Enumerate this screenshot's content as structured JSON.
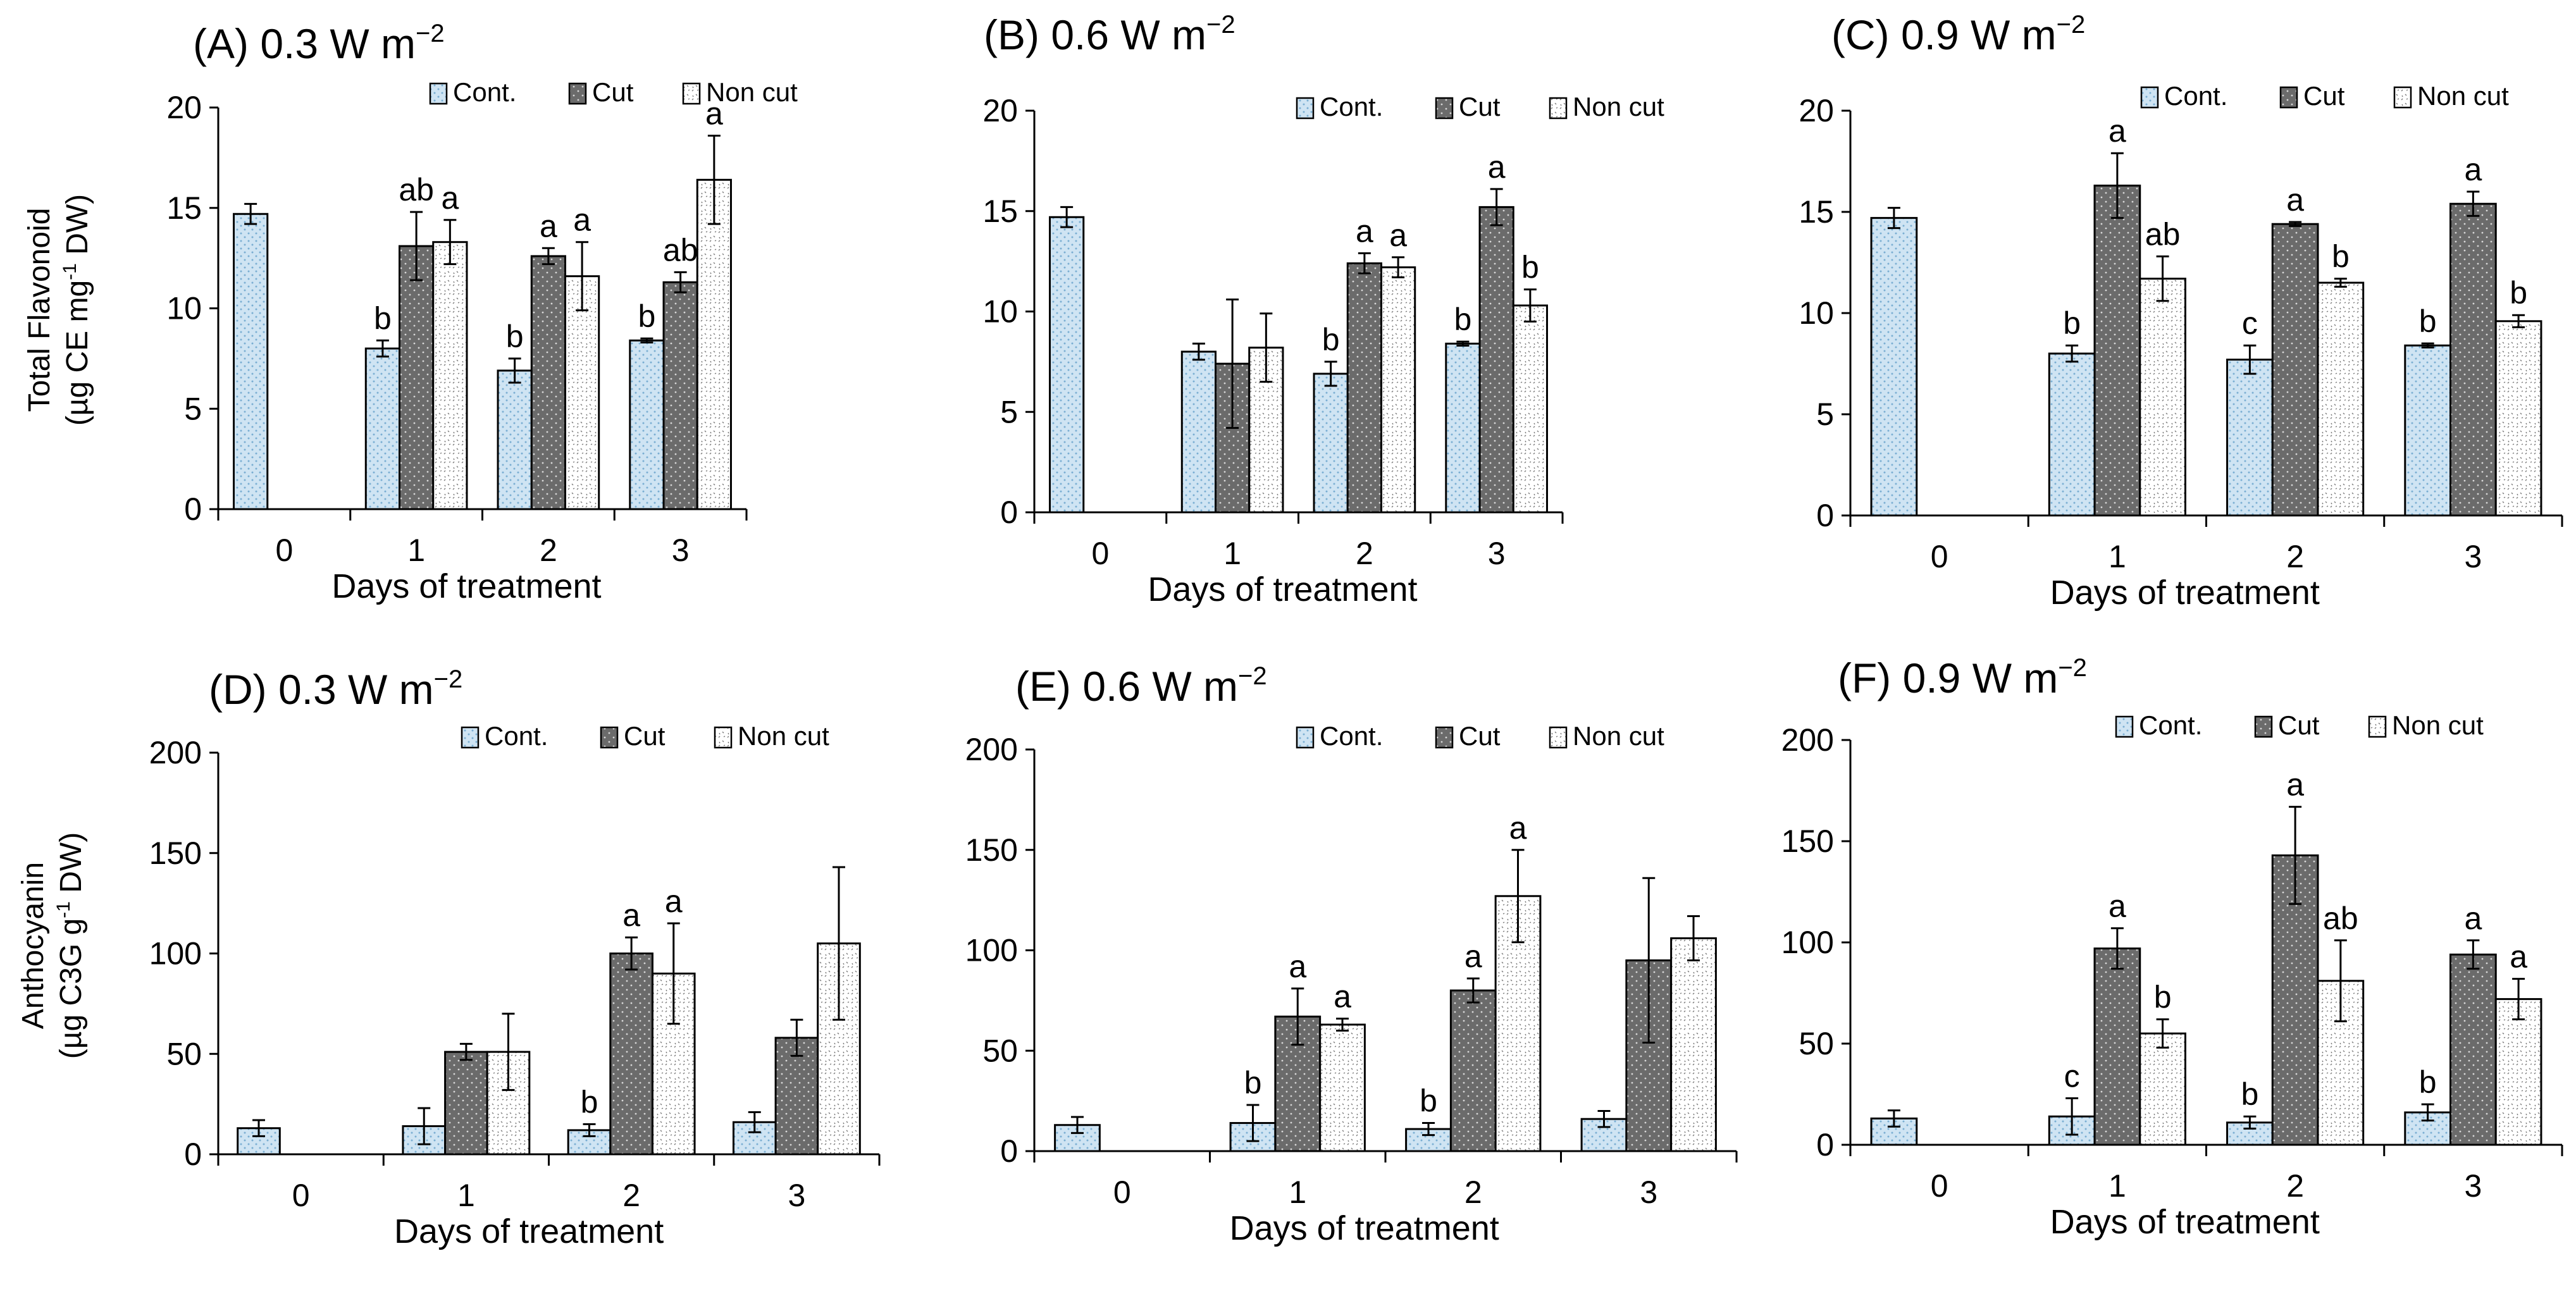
{
  "figure": {
    "row_ylabels": [
      {
        "line1": "Total Flavonoid",
        "line2_pre": "(µg CE mg",
        "line2_sup": "-1",
        "line2_post": " DW)"
      },
      {
        "line1": "Anthocyanin",
        "line2_pre": "(µg C3G g",
        "line2_sup": "-1",
        "line2_post": " DW)"
      }
    ],
    "legend": [
      "Cont.",
      "Cut",
      "Non cut"
    ],
    "colors": {
      "cont": "#cfe4f3",
      "cont_dot": "#7aaed2",
      "cut": "#6b6b6b",
      "cut_dot": "#d8d8d8",
      "noncut": "#ffffff",
      "noncut_mark": "#7a7a7a"
    }
  },
  "chart_data": [
    {
      "type": "bar",
      "panel": "(A)",
      "title": "(A) 0.3 W m",
      "title_sup": "−2",
      "categories": [
        "0",
        "1",
        "2",
        "3"
      ],
      "xlabel": "Days of treatment",
      "ylim": [
        0,
        20
      ],
      "yticks": [
        0,
        5,
        10,
        15,
        20
      ],
      "series": [
        {
          "name": "Cont.",
          "values": [
            14.7,
            8.0,
            6.9,
            8.4
          ],
          "errors": [
            0.5,
            0.4,
            0.6,
            0.1
          ],
          "labels": [
            "",
            "b",
            "b",
            "b"
          ]
        },
        {
          "name": "Cut",
          "values": [
            null,
            13.1,
            12.6,
            11.3
          ],
          "errors": [
            null,
            1.7,
            0.4,
            0.5
          ],
          "labels": [
            "",
            "ab",
            "a",
            "ab"
          ]
        },
        {
          "name": "Non cut",
          "values": [
            null,
            13.3,
            11.6,
            16.4
          ],
          "errors": [
            null,
            1.1,
            1.7,
            2.2
          ],
          "labels": [
            "",
            "a",
            "a",
            "a"
          ]
        }
      ]
    },
    {
      "type": "bar",
      "panel": "(B)",
      "title": "(B) 0.6 W m",
      "title_sup": "−2",
      "categories": [
        "0",
        "1",
        "2",
        "3"
      ],
      "xlabel": "Days of treatment",
      "ylim": [
        0,
        20
      ],
      "yticks": [
        0,
        5,
        10,
        15,
        20
      ],
      "series": [
        {
          "name": "Cont.",
          "values": [
            14.7,
            8.0,
            6.9,
            8.4
          ],
          "errors": [
            0.5,
            0.4,
            0.6,
            0.1
          ],
          "labels": [
            "",
            "",
            "b",
            "b"
          ]
        },
        {
          "name": "Cut",
          "values": [
            null,
            7.4,
            12.4,
            15.2
          ],
          "errors": [
            null,
            3.2,
            0.5,
            0.9
          ],
          "labels": [
            "",
            "",
            "a",
            "a"
          ]
        },
        {
          "name": "Non cut",
          "values": [
            null,
            8.2,
            12.2,
            10.3
          ],
          "errors": [
            null,
            1.7,
            0.5,
            0.8
          ],
          "labels": [
            "",
            "",
            "a",
            "b"
          ]
        }
      ]
    },
    {
      "type": "bar",
      "panel": "(C)",
      "title": "(C) 0.9 W m",
      "title_sup": "−2",
      "categories": [
        "0",
        "1",
        "2",
        "3"
      ],
      "xlabel": "Days of treatment",
      "ylim": [
        0,
        20
      ],
      "yticks": [
        0,
        5,
        10,
        15,
        20
      ],
      "series": [
        {
          "name": "Cont.",
          "values": [
            14.7,
            8.0,
            7.7,
            8.4
          ],
          "errors": [
            0.5,
            0.4,
            0.7,
            0.1
          ],
          "labels": [
            "",
            "b",
            "c",
            "b"
          ]
        },
        {
          "name": "Cut",
          "values": [
            null,
            16.3,
            14.4,
            15.4
          ],
          "errors": [
            null,
            1.6,
            0.1,
            0.6
          ],
          "labels": [
            "",
            "a",
            "a",
            "a"
          ]
        },
        {
          "name": "Non cut",
          "values": [
            null,
            11.7,
            11.5,
            9.6
          ],
          "errors": [
            null,
            1.1,
            0.2,
            0.3
          ],
          "labels": [
            "",
            "ab",
            "b",
            "b"
          ]
        }
      ]
    },
    {
      "type": "bar",
      "panel": "(D)",
      "title": "(D) 0.3 W m",
      "title_sup": "−2",
      "categories": [
        "0",
        "1",
        "2",
        "3"
      ],
      "xlabel": "Days of treatment",
      "ylim": [
        0,
        200
      ],
      "yticks": [
        0,
        50,
        100,
        150,
        200
      ],
      "series": [
        {
          "name": "Cont.",
          "values": [
            13,
            14,
            12,
            16
          ],
          "errors": [
            4,
            9,
            3,
            5
          ],
          "labels": [
            "",
            "",
            "b",
            ""
          ]
        },
        {
          "name": "Cut",
          "values": [
            null,
            51,
            100,
            58
          ],
          "errors": [
            null,
            4,
            8,
            9
          ],
          "labels": [
            "",
            "",
            "a",
            ""
          ]
        },
        {
          "name": "Non cut",
          "values": [
            null,
            51,
            90,
            105
          ],
          "errors": [
            null,
            19,
            25,
            38
          ],
          "labels": [
            "",
            "",
            "a",
            ""
          ]
        }
      ]
    },
    {
      "type": "bar",
      "panel": "(E)",
      "title": "(E) 0.6 W m",
      "title_sup": "−2",
      "categories": [
        "0",
        "1",
        "2",
        "3"
      ],
      "xlabel": "Days of treatment",
      "ylim": [
        0,
        200
      ],
      "yticks": [
        0,
        50,
        100,
        150,
        200
      ],
      "series": [
        {
          "name": "Cont.",
          "values": [
            13,
            14,
            11,
            16
          ],
          "errors": [
            4,
            9,
            3,
            4
          ],
          "labels": [
            "",
            "b",
            "b",
            ""
          ]
        },
        {
          "name": "Cut",
          "values": [
            null,
            67,
            80,
            95
          ],
          "errors": [
            null,
            14,
            6,
            41
          ],
          "labels": [
            "",
            "a",
            "a",
            ""
          ]
        },
        {
          "name": "Non cut",
          "values": [
            null,
            63,
            127,
            106
          ],
          "errors": [
            null,
            3,
            23,
            11
          ],
          "labels": [
            "",
            "a",
            "a",
            ""
          ]
        }
      ]
    },
    {
      "type": "bar",
      "panel": "(F)",
      "title": "(F) 0.9 W m",
      "title_sup": "−2",
      "categories": [
        "0",
        "1",
        "2",
        "3"
      ],
      "xlabel": "Days of treatment",
      "ylim": [
        0,
        200
      ],
      "yticks": [
        0,
        50,
        100,
        150,
        200
      ],
      "series": [
        {
          "name": "Cont.",
          "values": [
            13,
            14,
            11,
            16
          ],
          "errors": [
            4,
            9,
            3,
            4
          ],
          "labels": [
            "",
            "c",
            "b",
            "b"
          ]
        },
        {
          "name": "Cut",
          "values": [
            null,
            97,
            143,
            94
          ],
          "errors": [
            null,
            10,
            24,
            7
          ],
          "labels": [
            "",
            "a",
            "a",
            "a"
          ]
        },
        {
          "name": "Non cut",
          "values": [
            null,
            55,
            81,
            72
          ],
          "errors": [
            null,
            7,
            20,
            10
          ],
          "labels": [
            "",
            "b",
            "ab",
            "a"
          ]
        }
      ]
    }
  ]
}
